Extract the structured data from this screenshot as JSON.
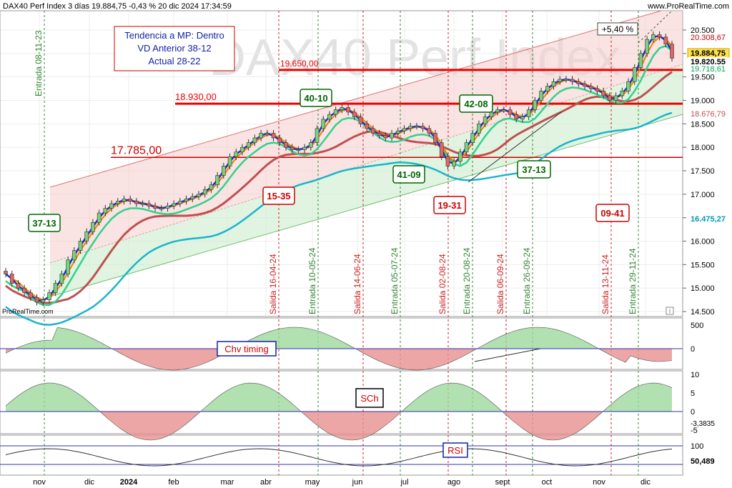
{
  "header": {
    "title": "DAX40 Perf Index 3 días 19.884,75 -0,43 % 20 dic 2024 17:34:59",
    "source_url": "www.ProRealTime.com",
    "watermark": "DAX40 Perf Index",
    "footer_source": "ProRealTime.com"
  },
  "trend_box": {
    "line1": "Tendencia a MP: Dentro",
    "line2": "VD Anterior 38-12",
    "line3": "Actual 28-22"
  },
  "chart_data": {
    "type": "candlestick",
    "price_axis": {
      "ticks": [
        "20.500",
        "20.000",
        "19.500",
        "19.000",
        "18.500",
        "18.000",
        "17.500",
        "17.000",
        "16.500",
        "16.000",
        "15.500",
        "15.000",
        "14.500"
      ],
      "range": [
        14500,
        20500
      ]
    },
    "time_axis": {
      "labels": [
        "nov",
        "dic",
        "2024",
        "feb",
        "mar",
        "abr",
        "may",
        "jun",
        "jul",
        "ago",
        "sept",
        "oct",
        "nov",
        "dic"
      ]
    },
    "price_tags": [
      {
        "text": "20.308,67",
        "color": "#c00000"
      },
      {
        "text": "19.884,75",
        "color": "#000000"
      },
      {
        "text": "19.820,55",
        "color": "#000000"
      },
      {
        "text": "19.718,61",
        "color": "#00aa55"
      },
      {
        "text": "18.676,79",
        "color": "#c05050"
      },
      {
        "text": "16.475,27",
        "color": "#0099bb"
      }
    ],
    "horizontal_levels": [
      {
        "label": "19.650,00",
        "value": 19650,
        "color": "#ee0000"
      },
      {
        "label": "18.930,00",
        "value": 18930,
        "color": "#ee0000"
      },
      {
        "label": "17.785,00",
        "value": 17785,
        "color": "#cc0000"
      }
    ],
    "percent_label": "+5,40 %",
    "boxed_labels": [
      {
        "text": "37-13",
        "color": "#006600",
        "border": "#006600"
      },
      {
        "text": "15-35",
        "color": "#cc0000",
        "border": "#cc0000"
      },
      {
        "text": "40-10",
        "color": "#006600",
        "border": "#006600"
      },
      {
        "text": "41-09",
        "color": "#006600",
        "border": "#006600"
      },
      {
        "text": "19-31",
        "color": "#cc0000",
        "border": "#cc0000"
      },
      {
        "text": "42-08",
        "color": "#006600",
        "border": "#006600"
      },
      {
        "text": "37-13",
        "color": "#006600",
        "border": "#006600"
      },
      {
        "text": "09-41",
        "color": "#cc0000",
        "border": "#cc0000"
      }
    ],
    "signals": [
      {
        "text": "Entrada 08-11-23",
        "color": "#338833"
      },
      {
        "text": "Salida 16-04-24",
        "color": "#cc2222"
      },
      {
        "text": "Entrada 10-05-24",
        "color": "#338833"
      },
      {
        "text": "Salida 14-06-24",
        "color": "#cc2222"
      },
      {
        "text": "Entrada 05-07-24",
        "color": "#338833"
      },
      {
        "text": "Salida 02-08-24",
        "color": "#cc2222"
      },
      {
        "text": "Entrada 20-08-24",
        "color": "#338833"
      },
      {
        "text": "Salida 06-09-24",
        "color": "#cc2222"
      },
      {
        "text": "Entrada 26-09-24",
        "color": "#338833"
      },
      {
        "text": "Salida 13-11-24",
        "color": "#cc2222"
      },
      {
        "text": "Entrada 29-11-24",
        "color": "#338833"
      }
    ],
    "close_series": [
      15300,
      15100,
      15000,
      14900,
      14800,
      14700,
      14750,
      14900,
      15100,
      15300,
      15600,
      15800,
      16000,
      16200,
      16400,
      16600,
      16700,
      16800,
      16850,
      16900,
      16850,
      16800,
      16800,
      16750,
      16700,
      16700,
      16750,
      16800,
      16850,
      16900,
      16950,
      17000,
      17100,
      17200,
      17400,
      17600,
      17800,
      17900,
      18000,
      18100,
      18200,
      18300,
      18300,
      18200,
      18100,
      18000,
      17950,
      17950,
      18000,
      18100,
      18400,
      18600,
      18700,
      18800,
      18850,
      18750,
      18650,
      18500,
      18400,
      18300,
      18250,
      18200,
      18300,
      18350,
      18400,
      18450,
      18450,
      18400,
      18300,
      18100,
      17800,
      17600,
      17700,
      17900,
      18100,
      18300,
      18500,
      18650,
      18750,
      18800,
      18800,
      18700,
      18600,
      18650,
      18800,
      19000,
      19200,
      19300,
      19400,
      19450,
      19450,
      19400,
      19350,
      19300,
      19250,
      19200,
      19100,
      19000,
      19100,
      19200,
      19400,
      19700,
      20000,
      20300,
      20400,
      20350,
      20200,
      19900
    ],
    "lines": [
      {
        "name": "fast-ma",
        "color": "#1a33cc"
      },
      {
        "name": "mid-ma",
        "color": "#2fd38c"
      },
      {
        "name": "slow-ma",
        "color": "#c05050"
      },
      {
        "name": "long-ma",
        "color": "#19b5cc"
      },
      {
        "name": "orange-ma",
        "color": "#f08000"
      },
      {
        "name": "red-ma",
        "color": "#dd1111"
      }
    ],
    "indicators": [
      {
        "label": "Chv timing",
        "ticks": [
          "500",
          "0"
        ],
        "zero_value": "0"
      },
      {
        "label": "SCh",
        "ticks": [
          "10",
          "5",
          "0",
          "-5"
        ],
        "value": "-3,3835"
      },
      {
        "label": "RSI",
        "ticks": [
          "100",
          "50"
        ],
        "value": "50,489"
      }
    ]
  }
}
